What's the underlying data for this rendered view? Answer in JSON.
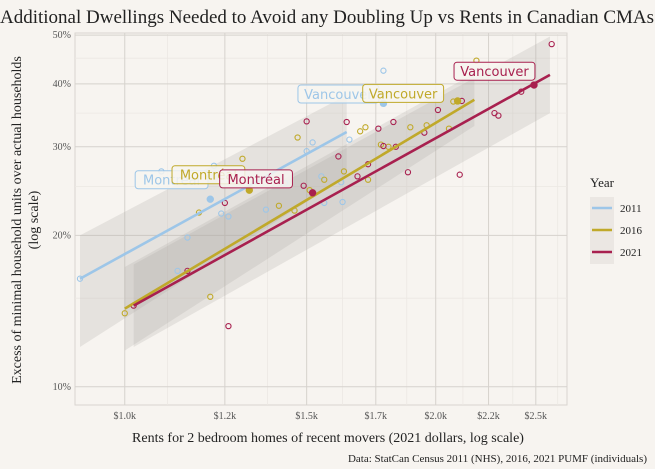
{
  "chart_data": {
    "type": "scatter",
    "title": "Additional Dwellings Needed to Avoid any Doubling Up vs Rents in Canadian CMAs",
    "xlabel": "Rents for 2 bedroom homes of recent movers (2021 dollars, log scale)",
    "ylabel": "Excess of minimal household units over actual households\n(log scale)",
    "ylabel_lines": [
      "Excess of minimal household units over actual households",
      "(log scale)"
    ],
    "caption": "Data: StatCan Census 2011 (NHS), 2016, 2021 PUMF (individuals)",
    "x_scale": "log",
    "y_scale": "log",
    "xlim": [
      895,
      2680
    ],
    "ylim": [
      0.092,
      0.505
    ],
    "x_ticks": [
      1000,
      1250,
      1500,
      1750,
      2000,
      2250,
      2500
    ],
    "x_tick_labels": [
      "$1.0k",
      "$1.2k",
      "$1.5k",
      "$1.7k",
      "$2.0k",
      "$2.2k",
      "$2.5k"
    ],
    "y_ticks": [
      0.1,
      0.2,
      0.3,
      0.4,
      0.5
    ],
    "y_tick_labels": [
      "10%",
      "20%",
      "30%",
      "40%",
      "50%"
    ],
    "grid": true,
    "legend": {
      "title": "Year",
      "position": "right",
      "entries": [
        {
          "label": "2011",
          "color": "#9dc6e8"
        },
        {
          "label": "2016",
          "color": "#c0a92a"
        },
        {
          "label": "2021",
          "color": "#a8204f"
        }
      ]
    },
    "series": [
      {
        "name": "2011",
        "color": "#9dc6e8",
        "points": [
          [
            905,
            0.164
          ],
          [
            1085,
            0.268
          ],
          [
            1125,
            0.17
          ],
          [
            1150,
            0.198
          ],
          [
            1220,
            0.275
          ],
          [
            1255,
            0.258
          ],
          [
            1240,
            0.221
          ],
          [
            1260,
            0.218
          ],
          [
            1370,
            0.225
          ],
          [
            1430,
            0.254
          ],
          [
            1500,
            0.294
          ],
          [
            1550,
            0.262
          ],
          [
            1560,
            0.232
          ],
          [
            1620,
            0.255
          ],
          [
            1650,
            0.31
          ],
          [
            1625,
            0.233
          ],
          [
            1780,
            0.425
          ],
          [
            1520,
            0.306
          ]
        ],
        "highlight": [
          [
            1210,
            0.236
          ],
          [
            1780,
            0.366
          ]
        ],
        "trend": {
          "x": [
            905,
            1640
          ],
          "y": [
            0.164,
            0.321
          ],
          "ci_low": [
            0.12,
            0.262
          ],
          "ci_high": [
            0.2,
            0.38
          ]
        }
      },
      {
        "name": "2016",
        "color": "#c0a92a",
        "points": [
          [
            1000,
            0.14
          ],
          [
            1180,
            0.222
          ],
          [
            1210,
            0.151
          ],
          [
            1300,
            0.284
          ],
          [
            1410,
            0.229
          ],
          [
            1460,
            0.224
          ],
          [
            1470,
            0.313
          ],
          [
            1510,
            0.246
          ],
          [
            1560,
            0.258
          ],
          [
            1630,
            0.268
          ],
          [
            1690,
            0.322
          ],
          [
            1710,
            0.328
          ],
          [
            1720,
            0.258
          ],
          [
            1770,
            0.303
          ],
          [
            1800,
            0.3
          ],
          [
            1890,
            0.328
          ],
          [
            1960,
            0.331
          ],
          [
            2060,
            0.326
          ],
          [
            2080,
            0.369
          ],
          [
            2190,
            0.445
          ]
        ],
        "highlight": [
          [
            1320,
            0.246
          ],
          [
            2100,
            0.37
          ]
        ],
        "trend": {
          "x": [
            1000,
            2180
          ],
          "y": [
            0.143,
            0.372
          ],
          "ci_low": [
            0.118,
            0.33
          ],
          "ci_high": [
            0.173,
            0.42
          ]
        }
      },
      {
        "name": "2021",
        "color": "#a8204f",
        "points": [
          [
            1020,
            0.145
          ],
          [
            1150,
            0.17
          ],
          [
            1250,
            0.232
          ],
          [
            1260,
            0.132
          ],
          [
            1500,
            0.337
          ],
          [
            1490,
            0.251
          ],
          [
            1610,
            0.287
          ],
          [
            1640,
            0.336
          ],
          [
            1680,
            0.262
          ],
          [
            1720,
            0.277
          ],
          [
            1760,
            0.326
          ],
          [
            1780,
            0.301
          ],
          [
            1820,
            0.336
          ],
          [
            1830,
            0.3
          ],
          [
            1880,
            0.267
          ],
          [
            1950,
            0.32
          ],
          [
            2010,
            0.355
          ],
          [
            2110,
            0.264
          ],
          [
            2120,
            0.37
          ],
          [
            2280,
            0.35
          ],
          [
            2300,
            0.346
          ],
          [
            2420,
            0.386
          ],
          [
            2590,
            0.48
          ]
        ],
        "highlight": [
          [
            1520,
            0.243
          ],
          [
            2490,
            0.398
          ]
        ],
        "trend": {
          "x": [
            1020,
            2580
          ],
          "y": [
            0.145,
            0.417
          ],
          "ci_low": [
            0.12,
            0.35
          ],
          "ci_high": [
            0.175,
            0.497
          ]
        }
      }
    ],
    "annotations": [
      {
        "text": "Vancouver",
        "series": "2011",
        "x": 1610,
        "y": 0.382
      },
      {
        "text": "Vancouver",
        "series": "2016",
        "x": 1860,
        "y": 0.383
      },
      {
        "text": "Vancouver",
        "series": "2021",
        "x": 2280,
        "y": 0.424
      },
      {
        "text": "Montréal",
        "series": "2011",
        "x": 1110,
        "y": 0.258
      },
      {
        "text": "Montréal",
        "series": "2016",
        "x": 1205,
        "y": 0.264
      },
      {
        "text": "Montréal",
        "series": "2021",
        "x": 1340,
        "y": 0.259
      }
    ]
  }
}
